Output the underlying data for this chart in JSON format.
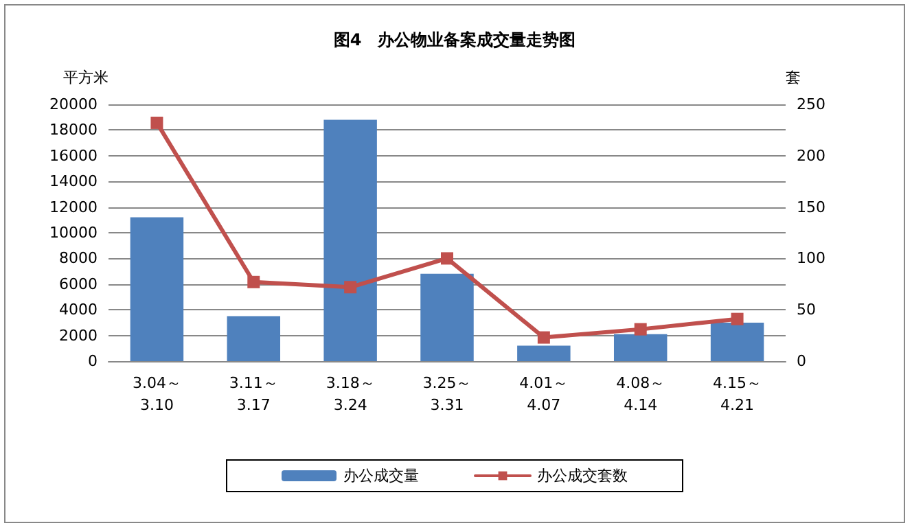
{
  "chart_data": {
    "type": "bar",
    "title": "图4　办公物业备案成交量走势图",
    "ylabel": "平方米",
    "y2label": "套",
    "categories": [
      "3.04～\n3.10",
      "3.11～\n3.17",
      "3.18～\n3.24",
      "3.25～\n3.31",
      "4.01～\n4.07",
      "4.08～\n4.14",
      "4.15～\n4.21"
    ],
    "series": [
      {
        "name": "办公成交量",
        "color": "#4f81bd",
        "values": [
          11200,
          3500,
          18800,
          6800,
          1200,
          2100,
          3000
        ]
      },
      {
        "name": "办公成交套数",
        "type": "line",
        "axis": "y2",
        "color": "#c0504d",
        "values": [
          232,
          77,
          72,
          100,
          23,
          31,
          41
        ]
      }
    ],
    "ylim": [
      0,
      20000
    ],
    "yticks": [
      0,
      2000,
      4000,
      6000,
      8000,
      10000,
      12000,
      14000,
      16000,
      18000,
      20000
    ],
    "y2lim": [
      0,
      250
    ],
    "y2ticks": [
      0,
      50,
      100,
      150,
      200,
      250
    ],
    "grid": "y",
    "legend": "bottom",
    "marker": "square",
    "line_style": "solid"
  }
}
